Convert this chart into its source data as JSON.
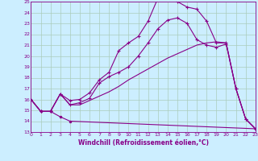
{
  "xlabel": "Windchill (Refroidissement éolien,°C)",
  "bg_color": "#cceeff",
  "grid_color": "#aaccbb",
  "line_color": "#880088",
  "x_ticks": [
    0,
    1,
    2,
    3,
    4,
    5,
    6,
    7,
    8,
    9,
    10,
    11,
    12,
    13,
    14,
    15,
    16,
    17,
    18,
    19,
    20,
    21,
    22,
    23
  ],
  "y_ticks": [
    13,
    14,
    15,
    16,
    17,
    18,
    19,
    20,
    21,
    22,
    23,
    24,
    25
  ],
  "xlim": [
    0,
    23
  ],
  "ylim": [
    13,
    25
  ],
  "line1_x": [
    0,
    1,
    2,
    3,
    4,
    23
  ],
  "line1_y": [
    16.0,
    14.9,
    14.9,
    14.4,
    14.0,
    13.3
  ],
  "line2_x": [
    0,
    1,
    2,
    3,
    4,
    5,
    6,
    7,
    8,
    9,
    10,
    11,
    12,
    13,
    14,
    15,
    16,
    17,
    18,
    19,
    20,
    21,
    22,
    23
  ],
  "line2_y": [
    16.0,
    14.9,
    14.9,
    16.5,
    15.9,
    16.0,
    16.6,
    17.8,
    18.5,
    20.5,
    21.2,
    21.8,
    23.2,
    25.3,
    25.4,
    25.0,
    24.5,
    24.3,
    23.2,
    21.2,
    21.2,
    17.0,
    14.2,
    13.3
  ],
  "line3_x": [
    0,
    1,
    2,
    3,
    4,
    5,
    6,
    7,
    8,
    9,
    10,
    11,
    12,
    13,
    14,
    15,
    16,
    17,
    18,
    19,
    20,
    21,
    22,
    23
  ],
  "line3_y": [
    16.0,
    14.9,
    14.9,
    16.5,
    15.5,
    15.7,
    16.1,
    17.5,
    18.1,
    18.5,
    19.0,
    20.0,
    21.2,
    22.5,
    23.3,
    23.5,
    23.0,
    21.5,
    21.0,
    20.8,
    21.1,
    17.0,
    14.2,
    13.3
  ],
  "line4_x": [
    0,
    1,
    2,
    3,
    4,
    5,
    6,
    7,
    8,
    9,
    10,
    11,
    12,
    13,
    14,
    15,
    16,
    17,
    18,
    19,
    20,
    21,
    22,
    23
  ],
  "line4_y": [
    16.0,
    14.9,
    14.9,
    16.5,
    15.5,
    15.5,
    15.9,
    16.3,
    16.7,
    17.2,
    17.8,
    18.3,
    18.8,
    19.3,
    19.8,
    20.2,
    20.6,
    21.0,
    21.2,
    21.3,
    21.2,
    17.0,
    14.2,
    13.3
  ]
}
